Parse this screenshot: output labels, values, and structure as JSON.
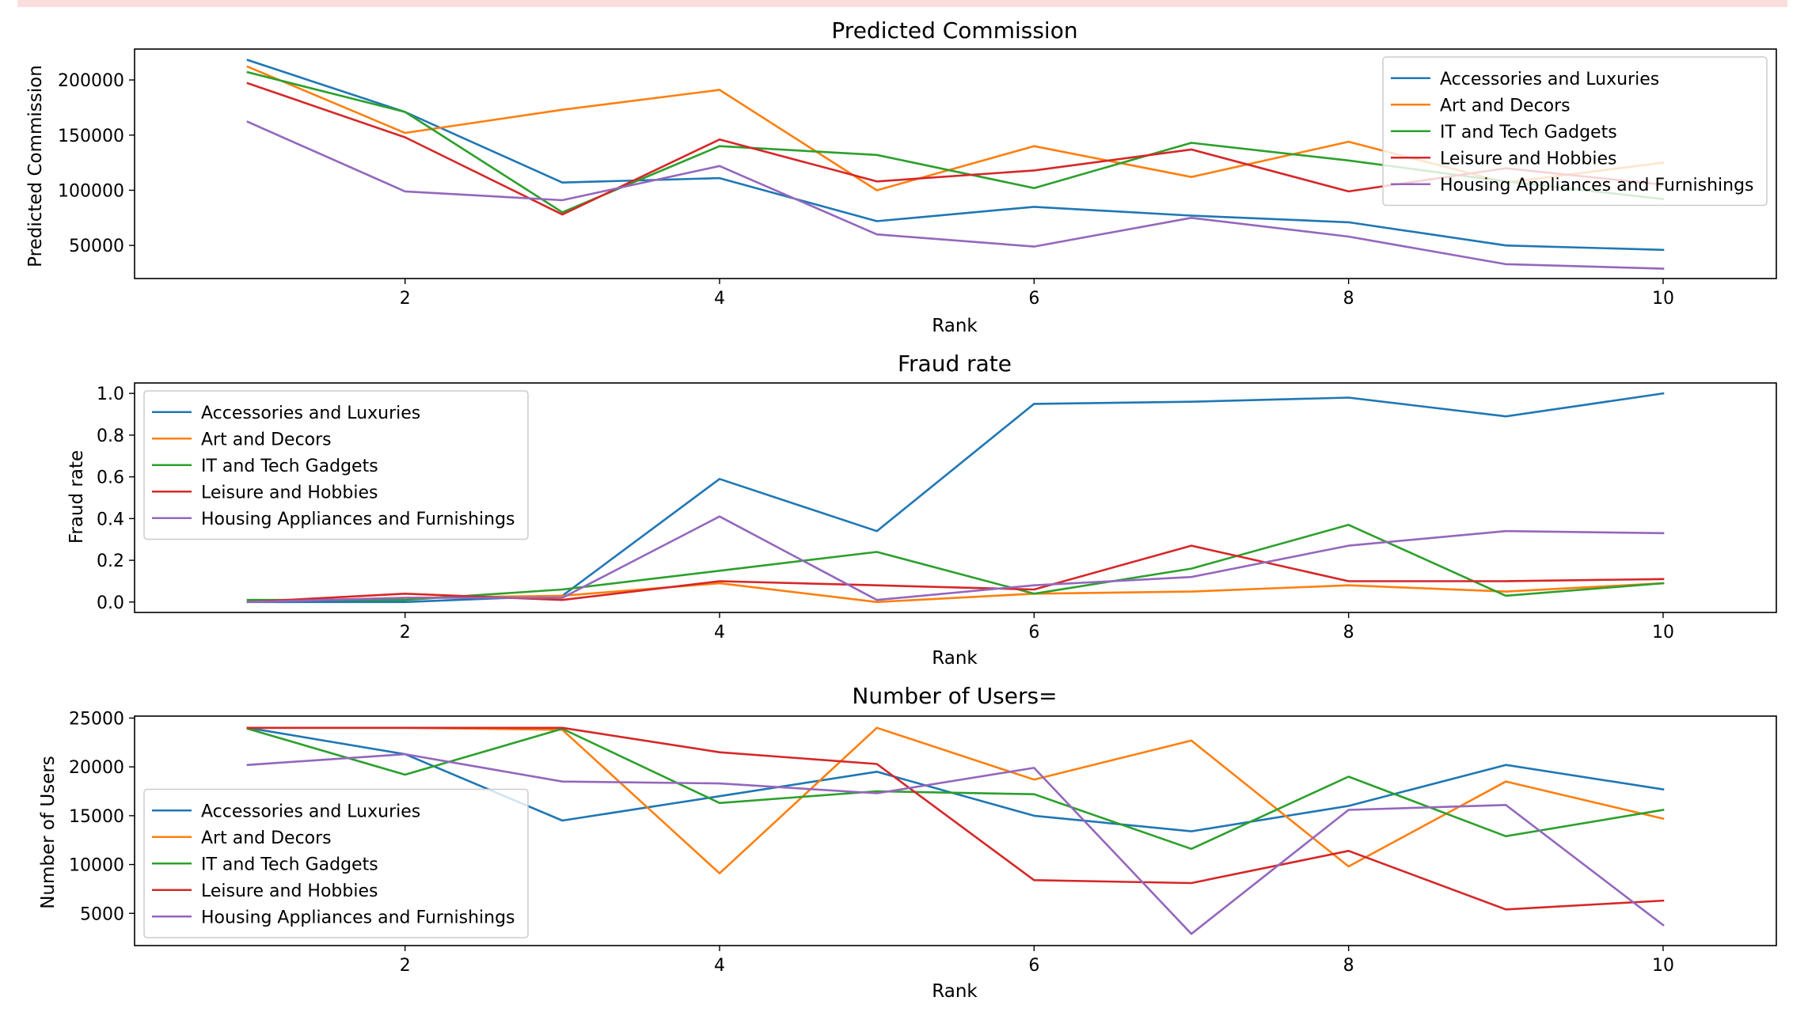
{
  "colors": {
    "accent_band": "#fadede",
    "series": [
      "#1f77b4",
      "#ff7f0e",
      "#2ca02c",
      "#d62728",
      "#9467bd"
    ]
  },
  "chart_data": [
    {
      "type": "line",
      "title": "Predicted Commission",
      "xlabel": "Rank",
      "ylabel": "Predicted Commission",
      "x": [
        1,
        2,
        3,
        4,
        5,
        6,
        7,
        8,
        9,
        10
      ],
      "xlim": [
        0.28,
        10.72
      ],
      "ylim": [
        20000,
        228000
      ],
      "xticks": [
        2,
        4,
        6,
        8,
        10
      ],
      "yticks": [
        50000,
        100000,
        150000,
        200000
      ],
      "legend": "top-right",
      "grid": false,
      "series": [
        {
          "name": "Accessories and Luxuries",
          "values": [
            218000,
            171000,
            107000,
            111000,
            72000,
            85000,
            77000,
            71000,
            50000,
            46000
          ]
        },
        {
          "name": "Art and Decors",
          "values": [
            212000,
            152000,
            173000,
            191000,
            100000,
            140000,
            112000,
            144000,
            107000,
            125000
          ]
        },
        {
          "name": "IT and Tech Gadgets",
          "values": [
            207000,
            171000,
            80000,
            140000,
            132000,
            102000,
            143000,
            127000,
            108000,
            92000
          ]
        },
        {
          "name": "Leisure and Hobbies",
          "values": [
            197000,
            148000,
            78000,
            146000,
            108000,
            118000,
            137000,
            99000,
            120000,
            105000
          ]
        },
        {
          "name": "Housing Appliances and Furnishings",
          "values": [
            162000,
            99000,
            91000,
            122000,
            60000,
            49000,
            75000,
            58000,
            33000,
            29000
          ]
        }
      ]
    },
    {
      "type": "line",
      "title": "Fraud rate",
      "xlabel": "Rank",
      "ylabel": "Fraud rate",
      "x": [
        1,
        2,
        3,
        4,
        5,
        6,
        7,
        8,
        9,
        10
      ],
      "xlim": [
        0.28,
        10.72
      ],
      "ylim": [
        -0.05,
        1.05
      ],
      "xticks": [
        2,
        4,
        6,
        8,
        10
      ],
      "yticks": [
        0.0,
        0.2,
        0.4,
        0.6,
        0.8,
        1.0
      ],
      "ytick_labels": [
        "0.0",
        "0.2",
        "0.4",
        "0.6",
        "0.8",
        "1.0"
      ],
      "legend": "top-left",
      "grid": false,
      "series": [
        {
          "name": "Accessories and Luxuries",
          "values": [
            0.0,
            0.0,
            0.03,
            0.59,
            0.34,
            0.95,
            0.96,
            0.98,
            0.89,
            1.0
          ]
        },
        {
          "name": "Art and Decors",
          "values": [
            0.0,
            0.02,
            0.03,
            0.09,
            0.0,
            0.04,
            0.05,
            0.08,
            0.05,
            0.09
          ]
        },
        {
          "name": "IT and Tech Gadgets",
          "values": [
            0.01,
            0.01,
            0.06,
            0.15,
            0.24,
            0.04,
            0.16,
            0.37,
            0.03,
            0.09
          ]
        },
        {
          "name": "Leisure and Hobbies",
          "values": [
            0.0,
            0.04,
            0.01,
            0.1,
            0.08,
            0.06,
            0.27,
            0.1,
            0.1,
            0.11
          ]
        },
        {
          "name": "Housing Appliances and Furnishings",
          "values": [
            0.0,
            0.02,
            0.02,
            0.41,
            0.01,
            0.08,
            0.12,
            0.27,
            0.34,
            0.33
          ]
        }
      ]
    },
    {
      "type": "line",
      "title": "Number of Users=",
      "xlabel": "Rank",
      "ylabel": "Number of Users",
      "x": [
        1,
        2,
        3,
        4,
        5,
        6,
        7,
        8,
        9,
        10
      ],
      "xlim": [
        0.28,
        10.72
      ],
      "ylim": [
        1700,
        25200
      ],
      "xticks": [
        2,
        4,
        6,
        8,
        10
      ],
      "yticks": [
        5000,
        10000,
        15000,
        20000,
        25000
      ],
      "legend": "lower-left",
      "grid": false,
      "series": [
        {
          "name": "Accessories and Luxuries",
          "values": [
            24000,
            21300,
            14500,
            17000,
            19500,
            15000,
            13400,
            16000,
            20200,
            17700
          ]
        },
        {
          "name": "Art and Decors",
          "values": [
            24000,
            24000,
            23800,
            9100,
            24000,
            18700,
            22700,
            9800,
            18500,
            14700
          ]
        },
        {
          "name": "IT and Tech Gadgets",
          "values": [
            23900,
            19200,
            23900,
            16300,
            17500,
            17200,
            11600,
            19000,
            12900,
            15600
          ]
        },
        {
          "name": "Leisure and Hobbies",
          "values": [
            24000,
            24000,
            24000,
            21500,
            20300,
            8400,
            8100,
            11400,
            5400,
            6300
          ]
        },
        {
          "name": "Housing Appliances and Furnishings",
          "values": [
            20200,
            21300,
            18500,
            18300,
            17300,
            19900,
            2900,
            15600,
            16100,
            3800
          ]
        }
      ]
    }
  ]
}
